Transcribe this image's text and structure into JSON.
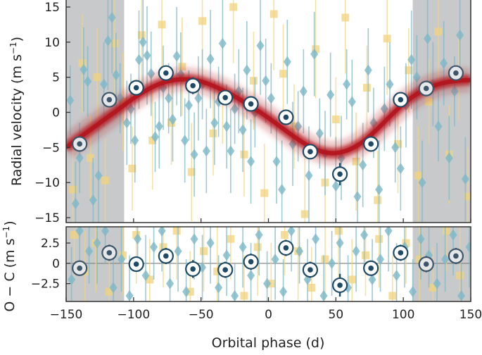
{
  "chart_data": {
    "type": "scatter",
    "colors": {
      "shade": "#c8c9cb",
      "model": "#b3121a",
      "binned_ring": "#1f4a66",
      "series_a": "#7db8c8",
      "series_b": "#f2d37c",
      "zero_line": "#888888",
      "frame": "#333333"
    },
    "x_axis": {
      "label": "Orbital phase (d)",
      "range": [
        -150,
        150
      ],
      "ticks": [
        -150,
        -100,
        -50,
        0,
        50,
        100,
        150
      ],
      "tick_labels": [
        "−150",
        "−100",
        "−50",
        "0",
        "50",
        "100",
        "150"
      ]
    },
    "shaded_ranges": [
      [
        -150,
        -107
      ],
      [
        107,
        150
      ]
    ],
    "panels": [
      {
        "name": "rv",
        "ylabel": "Radial velocity (m s⁻¹)",
        "ylabel_main": "Radial velocity (m s",
        "ylabel_sup": "−1",
        "ylabel_end": ")",
        "ylim": [
          -15.7,
          16
        ],
        "ticks": [
          -15,
          -10,
          -5,
          0,
          5,
          10,
          15
        ],
        "tick_labels": [
          "−15",
          "−10",
          "−5",
          "0",
          "5",
          "10",
          "15"
        ]
      },
      {
        "name": "residuals",
        "ylabel": "O − C (m s⁻¹)",
        "ylabel_main": "O − C (m s",
        "ylabel_sup": "−1",
        "ylabel_end": ")",
        "ylim": [
          -4.7,
          4.5
        ],
        "ticks": [
          -2.5,
          0,
          2.5
        ],
        "tick_labels": [
          "−2.5",
          "0",
          "2.5"
        ]
      }
    ],
    "model_curve": {
      "x": [
        -150,
        -140,
        -130,
        -120,
        -110,
        -100,
        -90,
        -80,
        -70,
        -60,
        -50,
        -40,
        -30,
        -20,
        -10,
        0,
        10,
        20,
        30,
        40,
        50,
        60,
        70,
        80,
        90,
        100,
        110,
        120,
        130,
        140,
        150
      ],
      "y": [
        -5.0,
        -3.6,
        -2.2,
        -0.8,
        0.6,
        2.0,
        3.2,
        4.1,
        4.6,
        4.7,
        4.4,
        3.7,
        2.8,
        1.7,
        0.5,
        -0.8,
        -2.2,
        -3.6,
        -4.8,
        -5.6,
        -5.8,
        -5.3,
        -4.2,
        -2.5,
        -0.6,
        1.2,
        2.6,
        3.6,
        4.2,
        4.5,
        4.6
      ]
    },
    "binned": {
      "x": [
        -140,
        -118,
        -98,
        -76,
        -56,
        -32,
        -13,
        13,
        31,
        53,
        76,
        98,
        117,
        139
      ],
      "y": [
        -4.5,
        1.8,
        3.5,
        5.6,
        3.8,
        2.1,
        1.2,
        -0.7,
        -5.6,
        -8.8,
        -4.5,
        1.8,
        3.4,
        5.6
      ],
      "err": [
        1.0,
        1.0,
        0.9,
        1.0,
        1.2,
        1.0,
        1.0,
        1.1,
        1.0,
        1.6,
        1.0,
        1.0,
        0.9,
        1.0
      ],
      "residual": [
        -0.6,
        1.3,
        -0.1,
        0.9,
        -0.7,
        -0.8,
        0.2,
        1.9,
        -0.8,
        -2.7,
        -0.6,
        1.3,
        -0.1,
        0.9
      ],
      "residual_err": [
        0.9,
        1.0,
        0.9,
        1.0,
        1.1,
        1.0,
        1.0,
        1.0,
        1.0,
        1.4,
        0.9,
        1.0,
        1.0,
        1.0
      ]
    },
    "series_a_points": {
      "x": [
        -147,
        -143,
        -140,
        -137,
        -134,
        -130,
        -126,
        -122,
        -119,
        -116,
        -113,
        -110,
        -105,
        -102,
        -99,
        -96,
        -93,
        -90,
        -87,
        -84,
        -81,
        -78,
        -74,
        -71,
        -68,
        -65,
        -62,
        -59,
        -55,
        -52,
        -49,
        -46,
        -43,
        -40,
        -37,
        -34,
        -31,
        -28,
        -25,
        -22,
        -19,
        -16,
        -13,
        -10,
        -6,
        -2,
        2,
        6,
        10,
        14,
        18,
        22,
        26,
        30,
        34,
        38,
        42,
        46,
        50,
        54,
        58,
        62,
        66,
        70,
        74,
        78,
        82,
        86,
        90,
        94,
        98,
        102,
        106,
        110,
        114,
        118,
        122,
        126,
        130,
        134,
        138,
        142,
        146
      ],
      "y": [
        1.7,
        -13,
        -6.5,
        6.1,
        4.4,
        -12.5,
        -9,
        4.0,
        10.2,
        13.5,
        5.3,
        2.0,
        -1.5,
        0.5,
        -4.0,
        7.5,
        10.0,
        8.1,
        5.5,
        -3.5,
        -2.0,
        3.5,
        2.0,
        -1.0,
        8.0,
        5.4,
        -4.0,
        1.0,
        -6.0,
        2.0,
        4.0,
        -5.5,
        7.6,
        -1.5,
        1.5,
        9.8,
        -2.0,
        -5.5,
        0.5,
        3.0,
        -2.5,
        6.0,
        -7.0,
        0.0,
        9.5,
        4.5,
        2.0,
        -7.0,
        -11.0,
        7.2,
        -4.5,
        -2.0,
        3.0,
        -9.0,
        8.3,
        -3.0,
        -5.8,
        2.5,
        -10.5,
        -6.5,
        4.0,
        1.5,
        -12.0,
        -7.5,
        6.0,
        -1.5,
        -11.0,
        0.5,
        4.0,
        -5.0,
        -8.0,
        1.0,
        7.5,
        5.0,
        -10.0,
        10.5,
        4.0,
        -2.0,
        7.0,
        -6.5,
        3.0,
        11.0,
        -9.5
      ],
      "err": [
        5,
        6,
        5,
        6,
        5,
        6,
        7,
        6,
        7,
        8,
        6,
        5,
        6,
        5,
        6,
        7,
        6,
        7,
        6,
        5,
        6,
        6,
        5,
        6,
        7,
        6,
        6,
        5,
        6,
        6,
        5,
        6,
        7,
        6,
        5,
        7,
        6,
        6,
        5,
        6,
        6,
        7,
        6,
        5,
        7,
        6,
        5,
        6,
        7,
        6,
        6,
        5,
        6,
        7,
        6,
        5,
        6,
        6,
        7,
        6,
        5,
        6,
        7,
        6,
        6,
        5,
        7,
        6,
        6,
        5,
        6,
        6,
        7,
        6,
        6,
        7,
        6,
        5,
        6,
        6,
        5,
        7,
        6
      ]
    },
    "series_b_points": {
      "x": [
        -145,
        -138,
        -132,
        -127,
        -121,
        -114,
        -108,
        -101,
        -94,
        -86,
        -79,
        -72,
        -64,
        -57,
        -49,
        -41,
        -34,
        -26,
        -18,
        -11,
        -3,
        4,
        11,
        19,
        27,
        35,
        42,
        50,
        57,
        65,
        73,
        81,
        88,
        96,
        104,
        111,
        119,
        126,
        134,
        141,
        148
      ],
      "y": [
        -11.0,
        7.0,
        -6.5,
        5.0,
        -9.7,
        9.8,
        1.5,
        -8.0,
        11.0,
        -4.0,
        12.5,
        -1.5,
        6.5,
        -8.5,
        13.0,
        -3.0,
        2.5,
        15.0,
        -6.0,
        4.5,
        -11.5,
        14.0,
        5.5,
        -2.0,
        -14.5,
        9.0,
        -10.0,
        -1.0,
        13.5,
        -7.0,
        3.5,
        -12.5,
        10.5,
        -4.5,
        6.0,
        -9.0,
        1.5,
        11.5,
        -6.0,
        5.0,
        -12.0
      ],
      "err": [
        6,
        7,
        6,
        7,
        6,
        8,
        7,
        6,
        8,
        7,
        8,
        6,
        7,
        7,
        8,
        6,
        7,
        8,
        6,
        7,
        7,
        8,
        7,
        6,
        8,
        7,
        7,
        6,
        8,
        7,
        6,
        7,
        8,
        7,
        6,
        7,
        6,
        8,
        7,
        6,
        7
      ]
    },
    "residual_a_points": {
      "x": [
        -146,
        -140,
        -133,
        -127,
        -121,
        -115,
        -109,
        -103,
        -97,
        -91,
        -85,
        -79,
        -73,
        -67,
        -61,
        -55,
        -49,
        -43,
        -37,
        -31,
        -25,
        -19,
        -13,
        -7,
        -1,
        5,
        11,
        17,
        23,
        29,
        35,
        41,
        47,
        53,
        59,
        65,
        71,
        77,
        83,
        89,
        95,
        101,
        107,
        113,
        119,
        125,
        131,
        137,
        143,
        149
      ],
      "y": [
        -2.0,
        4.0,
        1.5,
        2.5,
        4.0,
        -3.0,
        0.5,
        -4.0,
        3.0,
        -1.5,
        2.0,
        4.0,
        -2.5,
        1.5,
        -3.5,
        3.0,
        -0.5,
        2.5,
        -3.0,
        1.0,
        -4.0,
        2.0,
        -1.5,
        3.5,
        -2.5,
        0.5,
        -3.5,
        4.0,
        1.5,
        -2.0,
        3.0,
        -4.0,
        0.0,
        2.5,
        -3.0,
        1.5,
        3.5,
        -2.0,
        0.5,
        4.0,
        -1.5,
        2.0,
        -3.5,
        3.0,
        1.0,
        -2.5,
        0.5,
        3.5,
        -4.0,
        2.0
      ],
      "err": [
        4,
        5,
        4,
        5,
        4,
        5,
        4,
        5,
        4,
        5,
        4,
        5,
        4,
        5,
        4,
        5,
        4,
        5,
        4,
        5,
        4,
        5,
        4,
        5,
        4,
        5,
        4,
        5,
        4,
        5,
        4,
        5,
        4,
        5,
        4,
        5,
        4,
        5,
        4,
        5,
        4,
        5,
        4,
        5,
        4,
        5,
        4,
        5,
        4,
        5
      ]
    },
    "residual_b_points": {
      "x": [
        -144,
        -136,
        -128,
        -118,
        -108,
        -98,
        -88,
        -78,
        -68,
        -58,
        -48,
        -38,
        -28,
        -18,
        -8,
        2,
        12,
        22,
        32,
        42,
        52,
        62,
        72,
        82,
        92,
        102,
        112,
        122,
        132,
        142
      ],
      "y": [
        3.5,
        -1.0,
        2.5,
        -3.5,
        1.0,
        3.5,
        -2.0,
        2.0,
        4.0,
        -3.5,
        1.5,
        -1.0,
        3.0,
        -4.0,
        2.0,
        -2.5,
        3.5,
        1.5,
        -3.0,
        0.5,
        4.0,
        -2.0,
        1.0,
        3.0,
        -4.0,
        2.5,
        0.5,
        -3.0,
        4.0,
        -1.5
      ],
      "err": [
        5,
        5,
        6,
        5,
        5,
        6,
        5,
        5,
        6,
        5,
        5,
        6,
        5,
        5,
        6,
        5,
        5,
        6,
        5,
        5,
        6,
        5,
        5,
        6,
        5,
        5,
        6,
        5,
        5,
        6
      ]
    }
  }
}
